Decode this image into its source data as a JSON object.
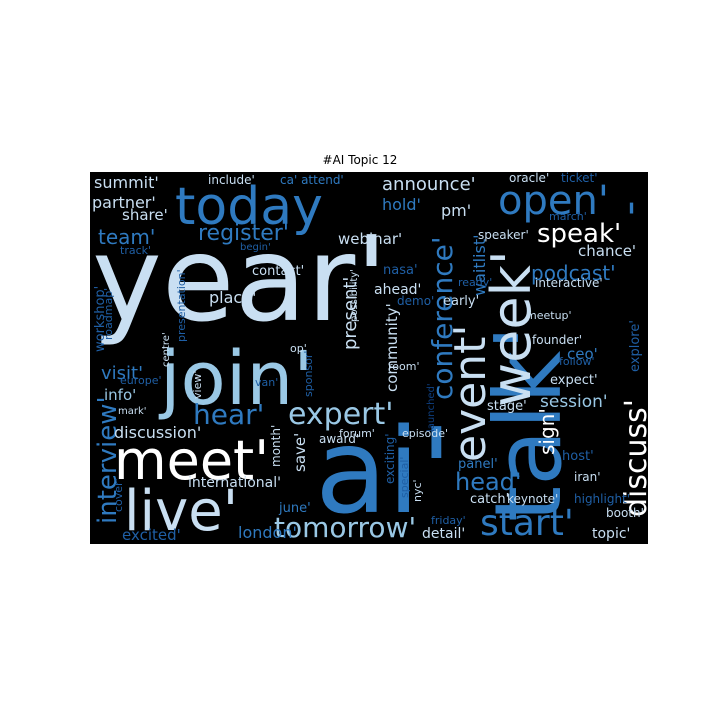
{
  "title": "#AI Topic 12",
  "colors": {
    "background": "#000000",
    "pale": "#c9dff2",
    "light": "#9ac8e5",
    "mid": "#5fa4d4",
    "blue": "#2f7ac0",
    "dark": "#1f5fa5",
    "deep": "#0e3f80",
    "white": "#ffffff"
  },
  "words": [
    {
      "text": "year'",
      "color": "pale"
    },
    {
      "text": "ai'",
      "color": "blue"
    },
    {
      "text": "talk'",
      "color": "blue"
    },
    {
      "text": "join'",
      "color": "light"
    },
    {
      "text": "meet'",
      "color": "white"
    },
    {
      "text": "live'",
      "color": "pale"
    },
    {
      "text": "today",
      "color": "blue"
    },
    {
      "text": "week'",
      "color": "pale"
    },
    {
      "text": "event'",
      "color": "pale"
    },
    {
      "text": "open'",
      "color": "blue"
    },
    {
      "text": "start'",
      "color": "blue"
    },
    {
      "text": "conference'",
      "color": "blue"
    },
    {
      "text": "discuss'",
      "color": "white"
    },
    {
      "text": "expert'",
      "color": "light"
    },
    {
      "text": "tomorrow'",
      "color": "light"
    },
    {
      "text": "hear'",
      "color": "blue"
    },
    {
      "text": "interview'",
      "color": "blue"
    },
    {
      "text": "speak'",
      "color": "white"
    },
    {
      "text": "announce'",
      "color": "pale"
    },
    {
      "text": "register'",
      "color": "blue"
    },
    {
      "text": "head'",
      "color": "blue"
    },
    {
      "text": "team'",
      "color": "blue"
    },
    {
      "text": "podcast'",
      "color": "blue"
    },
    {
      "text": "session'",
      "color": "light"
    },
    {
      "text": "present'",
      "color": "pale"
    },
    {
      "text": "summit'",
      "color": "pale"
    },
    {
      "text": "partner'",
      "color": "pale"
    },
    {
      "text": "webinar'",
      "color": "pale"
    },
    {
      "text": "community'",
      "color": "pale"
    },
    {
      "text": "discussion'",
      "color": "pale"
    },
    {
      "text": "international'",
      "color": "pale"
    },
    {
      "text": "sign'",
      "color": "white"
    },
    {
      "text": "place'",
      "color": "pale"
    },
    {
      "text": "visit'",
      "color": "blue"
    },
    {
      "text": "info'",
      "color": "light"
    },
    {
      "text": "chance'",
      "color": "pale"
    },
    {
      "text": "london'",
      "color": "blue"
    },
    {
      "text": "excited'",
      "color": "dark"
    },
    {
      "text": "topic'",
      "color": "pale"
    },
    {
      "text": "detail'",
      "color": "pale"
    },
    {
      "text": "waitlist'",
      "color": "blue"
    },
    {
      "text": "hold'",
      "color": "blue"
    },
    {
      "text": "pm'",
      "color": "pale"
    },
    {
      "text": "speaker'",
      "color": "pale"
    },
    {
      "text": "include'",
      "color": "pale"
    },
    {
      "text": "ca' attend'",
      "color": "blue"
    },
    {
      "text": "oracle'",
      "color": "pale"
    },
    {
      "text": "ticket'",
      "color": "dark"
    },
    {
      "text": "march'",
      "color": "dark"
    },
    {
      "text": "share'",
      "color": "pale"
    },
    {
      "text": "track'",
      "color": "dark"
    },
    {
      "text": "begin'",
      "color": "dark"
    },
    {
      "text": "presentation'",
      "color": "dark"
    },
    {
      "text": "workshop'",
      "color": "dark"
    },
    {
      "text": "roadmap'",
      "color": "dark"
    },
    {
      "text": "contact'",
      "color": "pale"
    },
    {
      "text": "possibility'",
      "color": "pale"
    },
    {
      "text": "nasa'",
      "color": "dark"
    },
    {
      "text": "ahead'",
      "color": "pale"
    },
    {
      "text": "ready'",
      "color": "dark"
    },
    {
      "text": "interactive'",
      "color": "pale"
    },
    {
      "text": "demo'",
      "color": "dark"
    },
    {
      "text": "early'",
      "color": "pale"
    },
    {
      "text": "explore'",
      "color": "dark"
    },
    {
      "text": "meetup'",
      "color": "pale"
    },
    {
      "text": "founder'",
      "color": "pale"
    },
    {
      "text": "ceo'",
      "color": "blue"
    },
    {
      "text": "follow'",
      "color": "dark"
    },
    {
      "text": "centre'",
      "color": "pale"
    },
    {
      "text": "op'",
      "color": "pale"
    },
    {
      "text": "sponsor'",
      "color": "dark"
    },
    {
      "text": "room'",
      "color": "pale"
    },
    {
      "text": "view'",
      "color": "pale"
    },
    {
      "text": "van'",
      "color": "dark"
    },
    {
      "text": "europe'",
      "color": "dark"
    },
    {
      "text": "mark'",
      "color": "pale"
    },
    {
      "text": "stage'",
      "color": "pale"
    },
    {
      "text": "expect'",
      "color": "pale"
    },
    {
      "text": "month'",
      "color": "pale"
    },
    {
      "text": "save'",
      "color": "pale"
    },
    {
      "text": "forum'",
      "color": "pale"
    },
    {
      "text": "episode'",
      "color": "pale"
    },
    {
      "text": "award'",
      "color": "pale"
    },
    {
      "text": "exciting'",
      "color": "dark"
    },
    {
      "text": "panel'",
      "color": "blue"
    },
    {
      "text": "host'",
      "color": "dark"
    },
    {
      "text": "iran'",
      "color": "pale"
    },
    {
      "text": "special'",
      "color": "dark"
    },
    {
      "text": "nyc'",
      "color": "pale"
    },
    {
      "text": "catch'",
      "color": "pale"
    },
    {
      "text": "keynote'",
      "color": "pale"
    },
    {
      "text": "highlight'",
      "color": "dark"
    },
    {
      "text": "booth'",
      "color": "pale"
    },
    {
      "text": "friday'",
      "color": "dark"
    },
    {
      "text": "june'",
      "color": "blue"
    },
    {
      "text": "cover'",
      "color": "dark"
    },
    {
      "text": "launched'",
      "color": "deep"
    },
    {
      "text": "'",
      "color": "blue"
    }
  ]
}
